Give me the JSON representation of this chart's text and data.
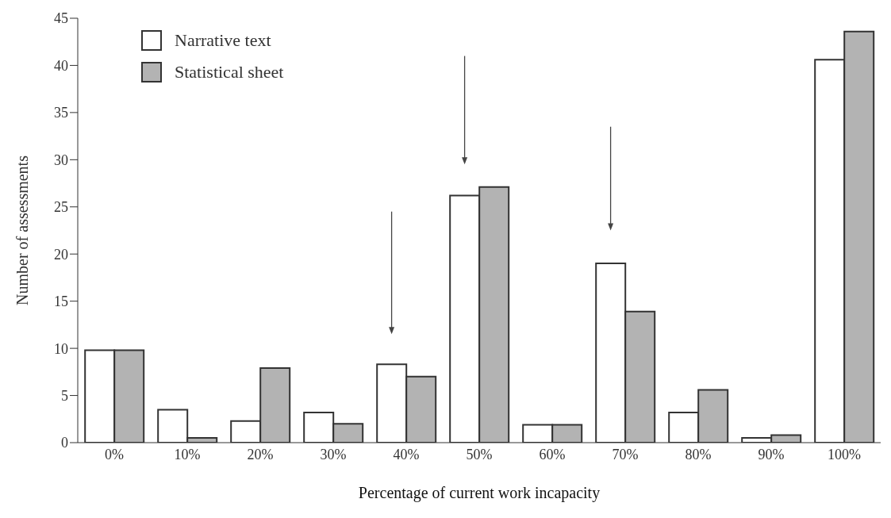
{
  "chart_data": {
    "type": "bar",
    "xlabel": "Percentage of current work incapacity",
    "ylabel": "Number of assessments",
    "categories": [
      "0%",
      "10%",
      "20%",
      "30%",
      "40%",
      "50%",
      "60%",
      "70%",
      "80%",
      "90%",
      "100%"
    ],
    "series": [
      {
        "name": "Narrative text",
        "color": "#ffffff",
        "values": [
          9.8,
          3.5,
          2.3,
          3.2,
          8.3,
          26.2,
          1.9,
          19.0,
          3.2,
          0.5,
          40.6
        ]
      },
      {
        "name": "Statistical sheet",
        "color": "#b3b3b3",
        "values": [
          9.8,
          0.5,
          7.9,
          2.0,
          7.0,
          27.1,
          1.9,
          13.9,
          5.6,
          0.8,
          43.6
        ]
      }
    ],
    "ylim": [
      0,
      45
    ],
    "yticks": [
      0,
      5,
      10,
      15,
      20,
      25,
      30,
      35,
      40,
      45
    ],
    "grid": false,
    "legend": "top left"
  }
}
